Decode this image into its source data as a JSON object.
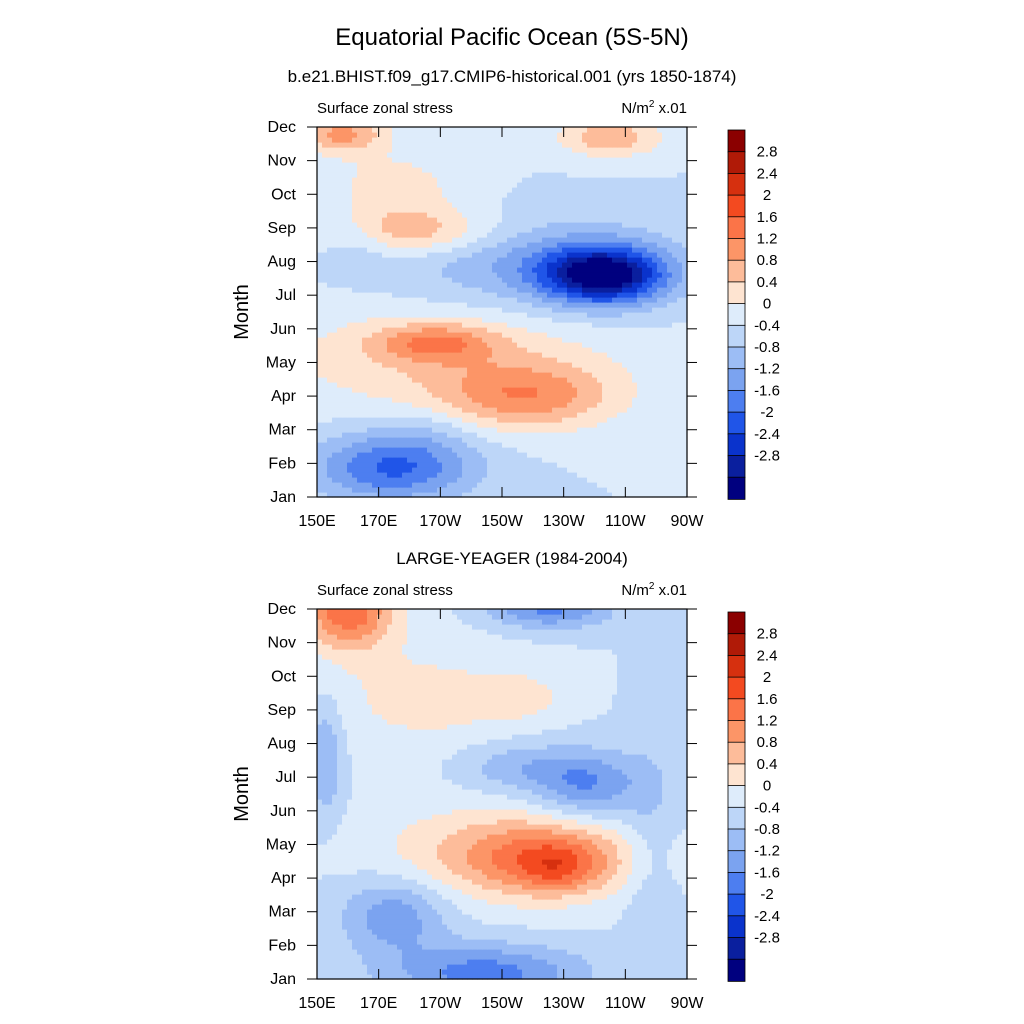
{
  "figure": {
    "title": "Equatorial Pacific Ocean (5S-5N)"
  },
  "chart_data": [
    {
      "type": "heatmap",
      "subtitle": "b.e21.BHIST.f09_g17.CMIP6-historical.001 (yrs 1850-1874)",
      "variable_label": "Surface zonal stress",
      "units_base": "N/m",
      "units_sup": "2",
      "units_scale": "x.01",
      "ylabel": "Month",
      "x_ticks": [
        "150E",
        "170E",
        "170W",
        "150W",
        "130W",
        "110W",
        "90W"
      ],
      "y_ticks": [
        "Jan",
        "Feb",
        "Mar",
        "Apr",
        "May",
        "Jun",
        "Jul",
        "Aug",
        "Sep",
        "Oct",
        "Nov",
        "Dec"
      ],
      "features": [
        {
          "center": [
            180,
            7.9
          ],
          "spread": [
            20,
            0.5
          ],
          "amp": 1.1
        },
        {
          "center": [
            245,
            10.7
          ],
          "spread": [
            12,
            0.4
          ],
          "amp": 1.1
        },
        {
          "center": [
            158,
            10.8
          ],
          "spread": [
            10,
            0.4
          ],
          "amp": 1.3
        },
        {
          "center": [
            175,
            9.2
          ],
          "spread": [
            16,
            0.8
          ],
          "amp": 0.6
        },
        {
          "center": [
            243,
            6.6
          ],
          "spread": [
            14,
            0.6
          ],
          "amp": -2.9
        },
        {
          "center": [
            222,
            7.0
          ],
          "spread": [
            30,
            0.9
          ],
          "amp": -0.9
        },
        {
          "center": [
            163,
            7.7
          ],
          "spread": [
            8,
            0.6
          ],
          "amp": -0.5
        },
        {
          "center": [
            188,
            4.6
          ],
          "spread": [
            14,
            0.4
          ],
          "amp": 1.2
        },
        {
          "center": [
            218,
            3.0
          ],
          "spread": [
            20,
            0.7
          ],
          "amp": 1.3
        },
        {
          "center": [
            190,
            4.1
          ],
          "spread": [
            40,
            1.1
          ],
          "amp": 0.7
        },
        {
          "center": [
            175,
            0.9
          ],
          "spread": [
            18,
            0.7
          ],
          "amp": -1.7
        },
        {
          "center": [
            185,
            2.0
          ],
          "spread": [
            12,
            0.5
          ],
          "amp": -0.3
        }
      ]
    },
    {
      "type": "heatmap",
      "subtitle": "LARGE-YEAGER (1984-2004)",
      "variable_label": "Surface zonal stress",
      "units_base": "N/m",
      "units_sup": "2",
      "units_scale": "x.01",
      "ylabel": "Month",
      "x_ticks": [
        "150E",
        "170E",
        "170W",
        "150W",
        "130W",
        "110W",
        "90W"
      ],
      "y_ticks": [
        "Jan",
        "Feb",
        "Mar",
        "Apr",
        "May",
        "Jun",
        "Jul",
        "Aug",
        "Sep",
        "Oct",
        "Nov",
        "Dec"
      ],
      "features": [
        {
          "center": [
            160,
            11.0
          ],
          "spread": [
            10,
            0.8
          ],
          "amp": 1.9
        },
        {
          "center": [
            215,
            8.4
          ],
          "spread": [
            10,
            0.5
          ],
          "amp": 0.6
        },
        {
          "center": [
            190,
            8.3
          ],
          "spread": [
            12,
            0.6
          ],
          "amp": 0.3
        },
        {
          "center": [
            178,
            8.5
          ],
          "spread": [
            25,
            1.5
          ],
          "amp": 0.4
        },
        {
          "center": [
            225,
            11.0
          ],
          "spread": [
            14,
            0.4
          ],
          "amp": -1.3
        },
        {
          "center": [
            238,
            5.8
          ],
          "spread": [
            12,
            0.7
          ],
          "amp": -1.2
        },
        {
          "center": [
            215,
            6.3
          ],
          "spread": [
            14,
            0.5
          ],
          "amp": -0.7
        },
        {
          "center": [
            153,
            6.6
          ],
          "spread": [
            4,
            1.2
          ],
          "amp": -0.9
        },
        {
          "center": [
            225,
            3.6
          ],
          "spread": [
            20,
            0.8
          ],
          "amp": 1.5
        },
        {
          "center": [
            228,
            3.3
          ],
          "spread": [
            9,
            0.5
          ],
          "amp": 0.7
        },
        {
          "center": [
            200,
            3.8
          ],
          "spread": [
            25,
            1.0
          ],
          "amp": 0.6
        },
        {
          "center": [
            175,
            1.9
          ],
          "spread": [
            12,
            0.8
          ],
          "amp": -1.1
        },
        {
          "center": [
            205,
            0.2
          ],
          "spread": [
            22,
            0.6
          ],
          "amp": -1.4
        },
        {
          "center": [
            258,
            4.0
          ],
          "spread": [
            6,
            2.5
          ],
          "amp": -0.4
        }
      ]
    }
  ],
  "colorbar": {
    "labels": [
      "2.8",
      "2.4",
      "2",
      "1.6",
      "1.2",
      "0.8",
      "0.4",
      "0",
      "-0.4",
      "-0.8",
      "-1.2",
      "-1.6",
      "-2",
      "-2.4",
      "-2.8"
    ],
    "colors": [
      "#8b0000",
      "#b01a07",
      "#d6300f",
      "#f34a20",
      "#fb7448",
      "#fc9567",
      "#fdbc9a",
      "#fee4d1",
      "#deecfb",
      "#bdd6f8",
      "#9cbdf5",
      "#7ba3f0",
      "#4d7ef0",
      "#2055e8",
      "#0a33cc",
      "#0a1f9e",
      "#00007f"
    ]
  }
}
